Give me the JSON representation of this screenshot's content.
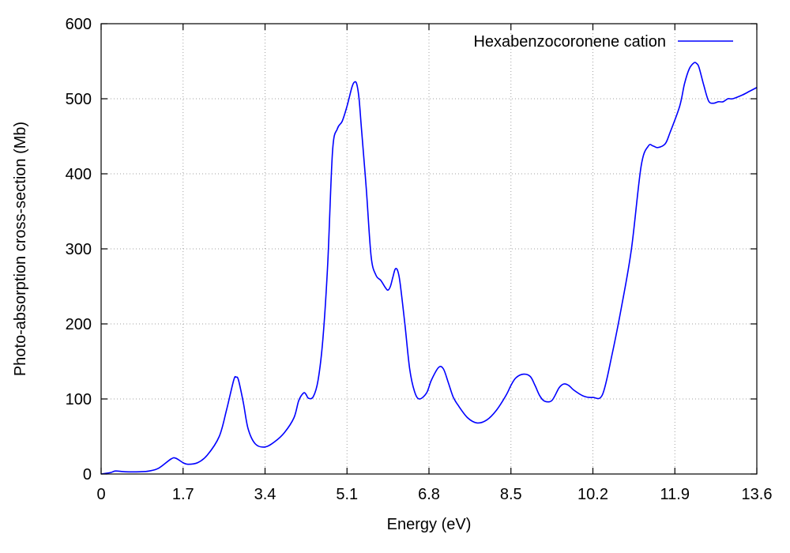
{
  "chart_data": {
    "type": "line",
    "xlabel": "Energy (eV)",
    "ylabel": "Photo-absorption cross-section (Mb)",
    "xlim": [
      0,
      13.6
    ],
    "ylim": [
      0,
      600
    ],
    "xticks": [
      0,
      1.7,
      3.4,
      5.1,
      6.8,
      8.5,
      10.2,
      11.9,
      13.6
    ],
    "xtick_labels": [
      "0",
      "1.7",
      "3.4",
      "5.1",
      "6.8",
      "8.5",
      "10.2",
      "11.9",
      "13.6"
    ],
    "yticks": [
      0,
      100,
      200,
      300,
      400,
      500,
      600
    ],
    "ytick_labels": [
      "0",
      "100",
      "200",
      "300",
      "400",
      "500",
      "600"
    ],
    "grid": true,
    "legend_position": "top-right",
    "series": [
      {
        "name": "Hexabenzocoronene cation",
        "color": "#0000ff",
        "x": [
          0.0,
          0.2,
          0.3,
          0.5,
          0.8,
          1.0,
          1.2,
          1.45,
          1.55,
          1.7,
          1.8,
          2.0,
          2.2,
          2.45,
          2.6,
          2.75,
          2.8,
          2.85,
          2.95,
          3.05,
          3.2,
          3.4,
          3.6,
          3.8,
          4.0,
          4.1,
          4.2,
          4.25,
          4.3,
          4.4,
          4.5,
          4.6,
          4.7,
          4.8,
          4.9,
          5.0,
          5.1,
          5.2,
          5.25,
          5.3,
          5.35,
          5.4,
          5.5,
          5.6,
          5.7,
          5.8,
          5.9,
          5.95,
          6.0,
          6.05,
          6.1,
          6.15,
          6.2,
          6.3,
          6.4,
          6.5,
          6.6,
          6.75,
          6.85,
          7.0,
          7.1,
          7.2,
          7.3,
          7.4,
          7.6,
          7.8,
          8.0,
          8.2,
          8.4,
          8.5,
          8.6,
          8.75,
          8.9,
          9.0,
          9.1,
          9.2,
          9.35,
          9.5,
          9.6,
          9.7,
          9.8,
          10.0,
          10.2,
          10.4,
          10.6,
          10.8,
          11.0,
          11.2,
          11.35,
          11.45,
          11.55,
          11.7,
          11.8,
          12.0,
          12.1,
          12.2,
          12.3,
          12.35,
          12.4,
          12.5,
          12.6,
          12.7,
          12.8,
          12.9,
          13.0,
          13.1,
          13.3,
          13.45,
          13.6
        ],
        "values": [
          0,
          2,
          4,
          3,
          3,
          4,
          8,
          20,
          21,
          15,
          13,
          15,
          25,
          50,
          85,
          125,
          129,
          125,
          95,
          60,
          40,
          36,
          43,
          55,
          75,
          98,
          108,
          106,
          101,
          103,
          125,
          180,
          280,
          430,
          460,
          470,
          490,
          515,
          522,
          520,
          500,
          460,
          380,
          290,
          265,
          258,
          248,
          245,
          250,
          262,
          273,
          271,
          255,
          200,
          140,
          110,
          100,
          108,
          125,
          142,
          140,
          122,
          103,
          92,
          75,
          68,
          72,
          85,
          105,
          118,
          128,
          133,
          130,
          118,
          104,
          97,
          98,
          115,
          120,
          118,
          112,
          104,
          102,
          106,
          160,
          225,
          300,
          410,
          437,
          437,
          435,
          440,
          455,
          490,
          520,
          540,
          548,
          547,
          542,
          518,
          497,
          494,
          496,
          496,
          500,
          500,
          505,
          510,
          515
        ]
      }
    ]
  }
}
